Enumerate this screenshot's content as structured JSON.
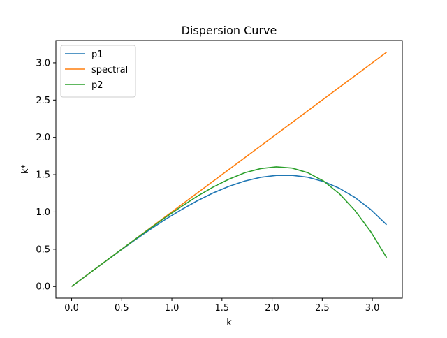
{
  "chart_data": {
    "type": "line",
    "title": "Dispersion Curve",
    "xlabel": "k",
    "ylabel": "k*",
    "xlim": [
      -0.157,
      3.299
    ],
    "ylim": [
      -0.157,
      3.299
    ],
    "xticks": [
      0.0,
      0.5,
      1.0,
      1.5,
      2.0,
      2.5,
      3.0
    ],
    "yticks": [
      0.0,
      0.5,
      1.0,
      1.5,
      2.0,
      2.5,
      3.0
    ],
    "xtick_labels": [
      "0.0",
      "0.5",
      "1.0",
      "1.5",
      "2.0",
      "2.5",
      "3.0"
    ],
    "ytick_labels": [
      "0.0",
      "0.5",
      "1.0",
      "1.5",
      "2.0",
      "2.5",
      "3.0"
    ],
    "grid": false,
    "legend_position": "top-left",
    "series": [
      {
        "name": "p1",
        "color": "#1f77b4",
        "x": [
          0.0,
          0.157,
          0.314,
          0.471,
          0.628,
          0.785,
          0.942,
          1.1,
          1.257,
          1.414,
          1.571,
          1.728,
          1.885,
          2.042,
          2.199,
          2.356,
          2.513,
          2.67,
          2.827,
          2.985,
          3.142
        ],
        "y": [
          0.0,
          0.157,
          0.313,
          0.468,
          0.62,
          0.766,
          0.905,
          1.034,
          1.152,
          1.256,
          1.344,
          1.414,
          1.464,
          1.49,
          1.491,
          1.465,
          1.407,
          1.318,
          1.193,
          1.031,
          0.828
        ]
      },
      {
        "name": "spectral",
        "color": "#ff7f0e",
        "x": [
          0.0,
          3.142
        ],
        "y": [
          0.0,
          3.142
        ]
      },
      {
        "name": "p2",
        "color": "#2ca02c",
        "x": [
          0.0,
          0.157,
          0.314,
          0.471,
          0.628,
          0.785,
          0.942,
          1.1,
          1.257,
          1.414,
          1.571,
          1.728,
          1.885,
          2.042,
          2.199,
          2.356,
          2.513,
          2.67,
          2.827,
          2.985,
          3.142
        ],
        "y": [
          0.0,
          0.157,
          0.314,
          0.471,
          0.627,
          0.781,
          0.932,
          1.077,
          1.213,
          1.335,
          1.44,
          1.525,
          1.581,
          1.604,
          1.588,
          1.526,
          1.414,
          1.246,
          1.019,
          0.733,
          0.388
        ]
      }
    ]
  }
}
